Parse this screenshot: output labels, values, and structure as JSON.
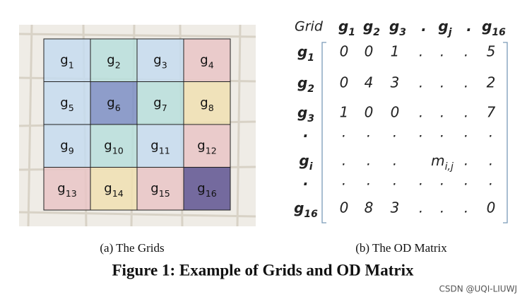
{
  "map": {
    "caption": "(a) The Grids",
    "cells": [
      {
        "base": "g",
        "sub": "1"
      },
      {
        "base": "g",
        "sub": "2"
      },
      {
        "base": "g",
        "sub": "3"
      },
      {
        "base": "g",
        "sub": "4"
      },
      {
        "base": "g",
        "sub": "5"
      },
      {
        "base": "g",
        "sub": "6"
      },
      {
        "base": "g",
        "sub": "7"
      },
      {
        "base": "g",
        "sub": "8"
      },
      {
        "base": "g",
        "sub": "9"
      },
      {
        "base": "g",
        "sub": "10"
      },
      {
        "base": "g",
        "sub": "11"
      },
      {
        "base": "g",
        "sub": "12"
      },
      {
        "base": "g",
        "sub": "13"
      },
      {
        "base": "g",
        "sub": "14"
      },
      {
        "base": "g",
        "sub": "15"
      },
      {
        "base": "g",
        "sub": "16"
      }
    ]
  },
  "matrix": {
    "caption": "(b) The OD Matrix",
    "corner": "Grid",
    "columns": [
      {
        "base": "g",
        "sub": "1"
      },
      {
        "base": "g",
        "sub": "2"
      },
      {
        "base": "g",
        "sub": "3"
      },
      {
        "base": "."
      },
      {
        "base": "g",
        "sub": "j"
      },
      {
        "base": "."
      },
      {
        "base": "g",
        "sub": "16"
      }
    ],
    "rows": [
      {
        "label": {
          "base": "g",
          "sub": "1"
        },
        "cells": [
          "0",
          "0",
          "1",
          ".",
          ".",
          ".",
          "5"
        ]
      },
      {
        "label": {
          "base": "g",
          "sub": "2"
        },
        "cells": [
          "0",
          "4",
          "3",
          ".",
          ".",
          ".",
          "2"
        ]
      },
      {
        "label": {
          "base": "g",
          "sub": "3"
        },
        "cells": [
          "1",
          "0",
          "0",
          ".",
          ".",
          ".",
          "7"
        ]
      },
      {
        "label": {
          "base": "."
        },
        "cells": [
          ".",
          ".",
          ".",
          ".",
          ".",
          ".",
          "."
        ]
      },
      {
        "label": {
          "base": "g",
          "sub": "i"
        },
        "cells": [
          ".",
          ".",
          ".",
          null,
          {
            "base": "m",
            "sub": "i,j"
          },
          ".",
          "."
        ]
      },
      {
        "label": {
          "base": "."
        },
        "cells": [
          ".",
          ".",
          ".",
          ".",
          ".",
          ".",
          "."
        ]
      },
      {
        "label": {
          "base": "g",
          "sub": "16"
        },
        "cells": [
          "0",
          "8",
          "3",
          ".",
          ".",
          ".",
          "0"
        ]
      }
    ]
  },
  "figure_title": "Figure 1: Example of Grids and OD Matrix",
  "watermark": "CSDN @UQI-LIUWJ"
}
